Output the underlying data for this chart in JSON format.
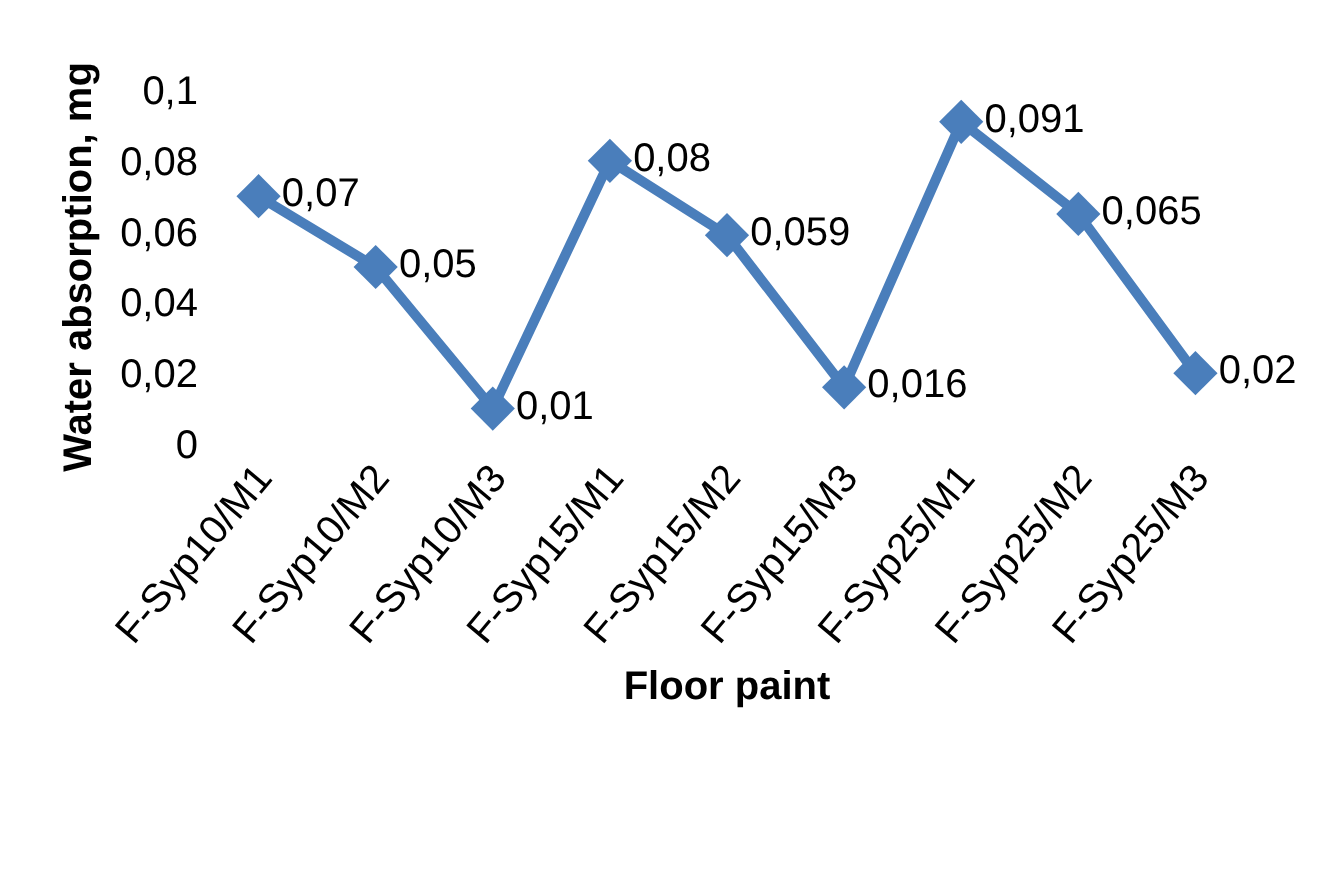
{
  "chart_data": {
    "type": "line",
    "xlabel": "Floor paint",
    "ylabel": "Water absorption, mg",
    "categories": [
      "F-Syp10/M1",
      "F-Syp10/M2",
      "F-Syp10/M3",
      "F-Syp15/M1",
      "F-Syp15/M2",
      "F-Syp15/M3",
      "F-Syp25/M1",
      "F-Syp25/M2",
      "F-Syp25/M3"
    ],
    "series": [
      {
        "color": "#4a7ebb",
        "values": [
          0.07,
          0.05,
          0.01,
          0.08,
          0.059,
          0.016,
          0.091,
          0.065,
          0.02
        ],
        "value_labels": [
          "0,07",
          "0,05",
          "0,01",
          "0,08",
          "0,059",
          "0,016",
          "0,091",
          "0,065",
          "0,02"
        ]
      }
    ],
    "ylim": [
      0,
      0.1
    ],
    "yticks": [
      {
        "value": 0,
        "label": "0"
      },
      {
        "value": 0.02,
        "label": "0,02"
      },
      {
        "value": 0.04,
        "label": "0,04"
      },
      {
        "value": 0.06,
        "label": "0,06"
      },
      {
        "value": 0.08,
        "label": "0,08"
      },
      {
        "value": 0.1,
        "label": "0,1"
      }
    ],
    "grid": false,
    "legend": false,
    "marker": "diamond",
    "line_style": "solid"
  }
}
